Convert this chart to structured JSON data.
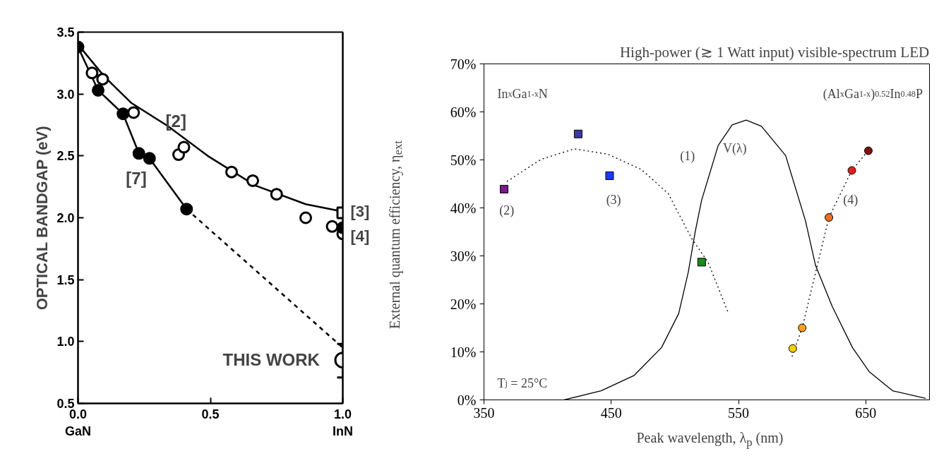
{
  "chart_data": [
    {
      "type": "scatter",
      "ylabel": "OPTICAL BANDGAP (eV)",
      "xlim": [
        0,
        1
      ],
      "ylim": [
        0.5,
        3.5
      ],
      "xticks": [
        {
          "value": 0,
          "label": "0.0\nGaN"
        },
        0.5,
        {
          "value": 1,
          "label": "1.0\nInN"
        }
      ],
      "yticks": [
        0.5,
        {
          "value": 1,
          "label": "1.0"
        },
        1.5,
        {
          "value": 2,
          "label": "2.0"
        },
        2.5,
        {
          "value": 3,
          "label": "3.0"
        },
        3.5
      ],
      "series": [
        {
          "type": "line",
          "color": "#000000",
          "x": [
            0,
            0.1,
            0.2,
            0.34,
            0.49,
            0.67,
            0.86,
            1.0
          ],
          "values": [
            3.4,
            3.14,
            2.93,
            2.74,
            2.5,
            2.26,
            2.11,
            2.05
          ]
        },
        {
          "type": "line",
          "color": "#000000",
          "x": [
            0,
            0.076,
            0.17,
            0.23,
            0.27,
            0.41
          ],
          "values": [
            3.38,
            3.03,
            2.84,
            2.52,
            2.48,
            2.07
          ]
        },
        {
          "type": "line",
          "color": "#000000",
          "line_style": "dashed",
          "x": [
            0.41,
            1.0
          ],
          "values": [
            2.07,
            0.95
          ]
        },
        {
          "marker": "circle",
          "color": "#ffffff",
          "x": [
            0.053,
            0.093,
            0.21,
            0.38,
            0.4,
            0.58,
            0.66,
            0.75,
            0.86,
            0.96,
            1.0
          ],
          "values": [
            3.17,
            3.12,
            2.85,
            2.51,
            2.57,
            2.37,
            2.3,
            2.19,
            2.0,
            1.93,
            1.87
          ]
        },
        {
          "marker": "circle",
          "color": "#000000",
          "x": [
            0,
            0.076,
            0.17,
            0.23,
            0.27,
            0.41,
            1.0
          ],
          "values": [
            3.38,
            3.03,
            2.84,
            2.52,
            2.48,
            2.07,
            1.92
          ]
        },
        {
          "marker": "square",
          "color": "#ffffff",
          "x": [
            1.0
          ],
          "values": [
            2.04
          ]
        },
        {
          "marker": "circle",
          "color": "#ffffff",
          "x": [
            1.0
          ],
          "values": [
            0.85
          ],
          "errors": [
            [
              0.71,
              0.98
            ]
          ]
        }
      ],
      "annotations": [
        "[2]",
        "[7]",
        "[3]",
        "[4]",
        "THIS WORK"
      ]
    },
    {
      "type": "scatter",
      "title": "High-power (≳ 1 Watt input) visible-spectrum LED",
      "xlabel": "Peak wavelength, λ$_{p}$ (nm)",
      "ylabel": "External quantum efficiency, η$_{ext}$",
      "xlim": [
        350,
        700
      ],
      "ylim": [
        0,
        70
      ],
      "xticks": [
        350,
        450,
        550,
        650
      ],
      "yticks": [
        {
          "value": 0,
          "label": "0%"
        },
        {
          "value": 10,
          "label": "10%"
        },
        {
          "value": 20,
          "label": "20%"
        },
        {
          "value": 30,
          "label": "30%"
        },
        {
          "value": 40,
          "label": "40%"
        },
        {
          "value": 50,
          "label": "50%"
        },
        {
          "value": 60,
          "label": "60%"
        },
        {
          "value": 70,
          "label": "70%"
        }
      ],
      "series": [
        {
          "type": "line",
          "color": "#000000",
          "x": [
            413,
            442,
            468,
            489.5,
            503,
            510.5,
            516,
            521,
            534,
            545,
            556,
            568,
            587,
            602.6,
            610.5,
            623.7,
            639.5,
            652.6,
            671,
            697
          ],
          "values": [
            0,
            1.9,
            5.1,
            10.9,
            18,
            26.6,
            35.1,
            41.6,
            53,
            57.3,
            58.3,
            57,
            50.9,
            37.3,
            28,
            19.4,
            10.9,
            5.9,
            1.9,
            0.3
          ]
        },
        {
          "type": "line",
          "color": "#000000",
          "line_style": "dotted",
          "x": [
            368,
            394.7,
            421,
            447,
            473.7,
            494.7,
            513,
            526,
            542
          ],
          "values": [
            45.5,
            50.1,
            52.3,
            51.2,
            48.0,
            43.0,
            33.7,
            28.7,
            18.1
          ]
        },
        {
          "type": "line",
          "color": "#000000",
          "line_style": "dotted",
          "x": [
            592,
            600,
            621,
            639,
            652
          ],
          "values": [
            9,
            15,
            38,
            47.8,
            52
          ]
        },
        {
          "marker": "square",
          "x": [
            365.8,
            424,
            448.7,
            521
          ],
          "values": [
            43.9,
            55.4,
            46.7,
            28.7
          ],
          "colors": [
            "#7b1a8a",
            "#3a3aa0",
            "#1a3aff",
            "#1a8a1a"
          ]
        },
        {
          "marker": "circle",
          "x": [
            592.6,
            600,
            621,
            639,
            652
          ],
          "values": [
            10.7,
            15.0,
            38.0,
            47.8,
            51.9
          ],
          "colors": [
            "#f5d000",
            "#f5a020",
            "#f07020",
            "#e02020",
            "#801010"
          ]
        }
      ],
      "annotations": [
        "In$_{x}$Ga$_{1-x}$N",
        "(Al$_{x}$Ga$_{1-x}$)$_{0.52}$In$_{0.48}$P",
        "T$_{j}$ = 25°C",
        "V(λ)",
        "(1)",
        "(2)",
        "(3)",
        "(4)"
      ]
    }
  ]
}
